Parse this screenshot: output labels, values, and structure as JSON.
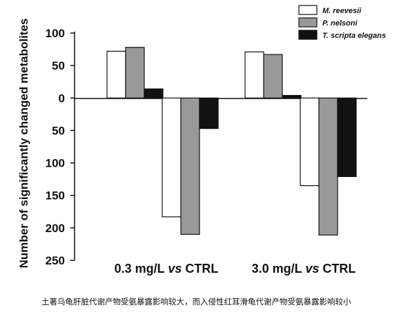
{
  "chart_data": {
    "type": "bar",
    "title": "",
    "xlabel": "",
    "ylabel": "Number of significantly changed metabolites",
    "ylim": [
      -250,
      100
    ],
    "yticks": [
      100,
      50,
      0,
      -50,
      -100,
      -150,
      -200,
      -250
    ],
    "ytick_labels": [
      "100",
      "50",
      "0",
      "50",
      "100",
      "150",
      "200",
      "250"
    ],
    "categories": [
      {
        "pre": "0.3 mg/L ",
        "vs": "vs",
        "post": " CTRL"
      },
      {
        "pre": "3.0 mg/L ",
        "vs": "vs",
        "post": " CTRL"
      }
    ],
    "series": [
      {
        "name": "M. reevesii",
        "color": "#ffffff",
        "up": [
          72,
          71
        ],
        "down": [
          -183,
          -135
        ]
      },
      {
        "name": "P. nelsoni",
        "color": "#999999",
        "up": [
          78,
          67
        ],
        "down": [
          -210,
          -211
        ]
      },
      {
        "name": "T. scripta elegans",
        "color": "#111111",
        "up": [
          14,
          4
        ],
        "down": [
          -47,
          -121
        ]
      }
    ],
    "grid": false,
    "legend": "top-right"
  },
  "caption": "土著乌龟肝脏代谢产物受氨暴露影响较大，而入侵性红耳滑龟代谢产物受氨暴露影响较小"
}
